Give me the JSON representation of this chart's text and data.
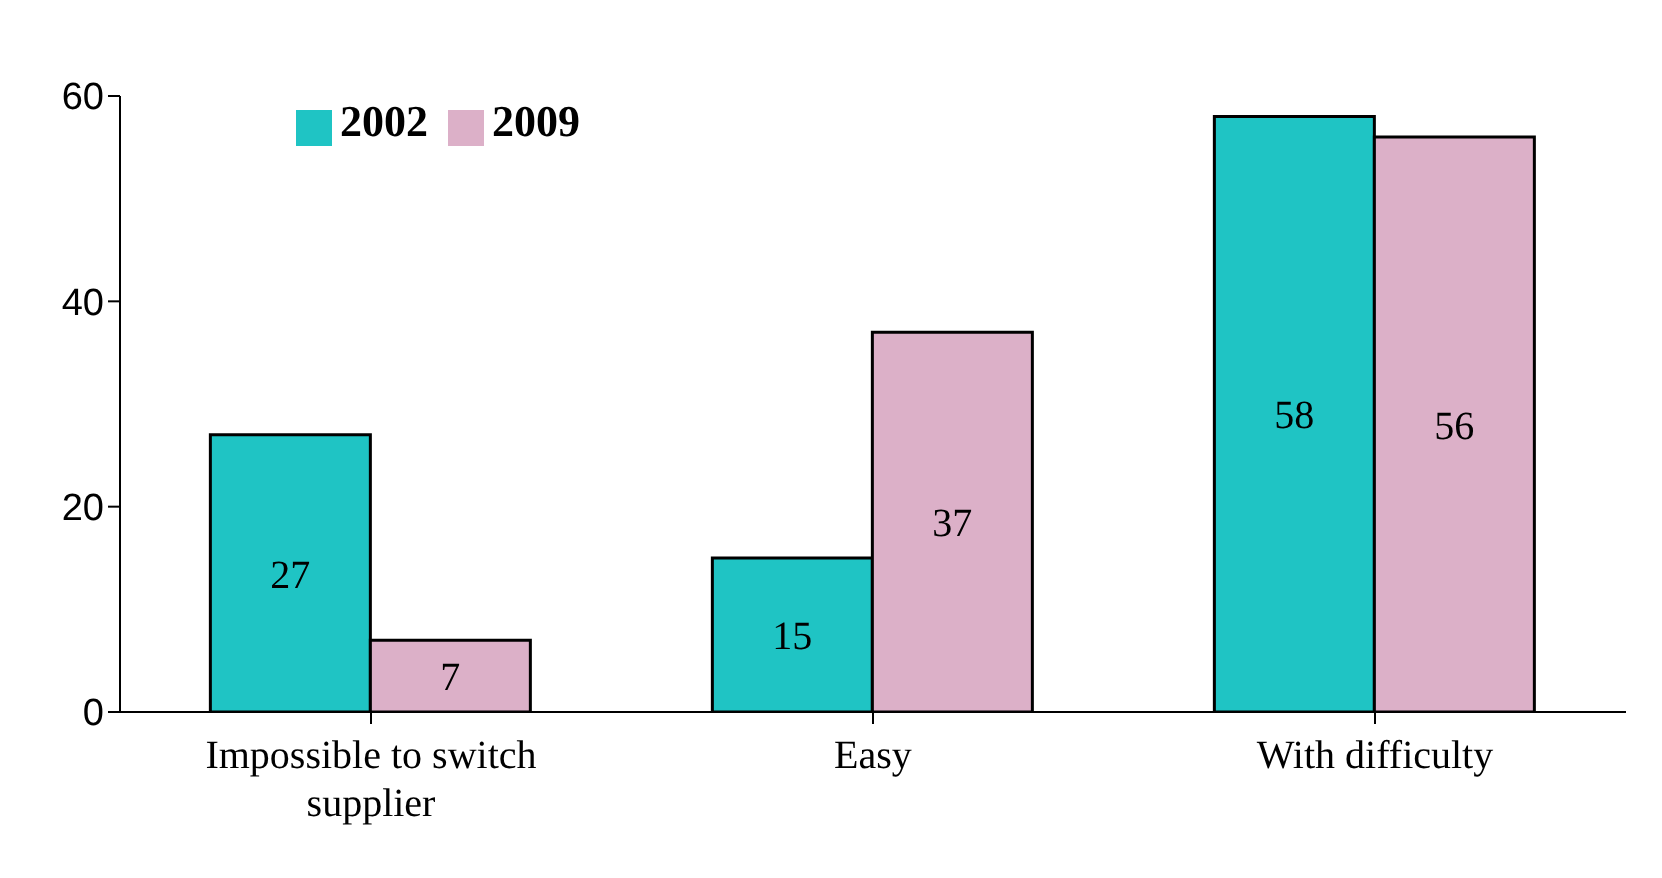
{
  "chart_data": {
    "type": "bar",
    "categories": [
      "Impossible to switch supplier",
      "Easy",
      "With difficulty"
    ],
    "series": [
      {
        "name": "2002",
        "color": "#1fc4c4",
        "values": [
          27,
          15,
          58
        ]
      },
      {
        "name": "2009",
        "color": "#dcb0c8",
        "values": [
          7,
          37,
          56
        ]
      }
    ],
    "ylim": [
      0,
      60
    ],
    "yticks": [
      0,
      20,
      40,
      60
    ],
    "grid": false,
    "legend": "top left",
    "data_labels": true
  }
}
